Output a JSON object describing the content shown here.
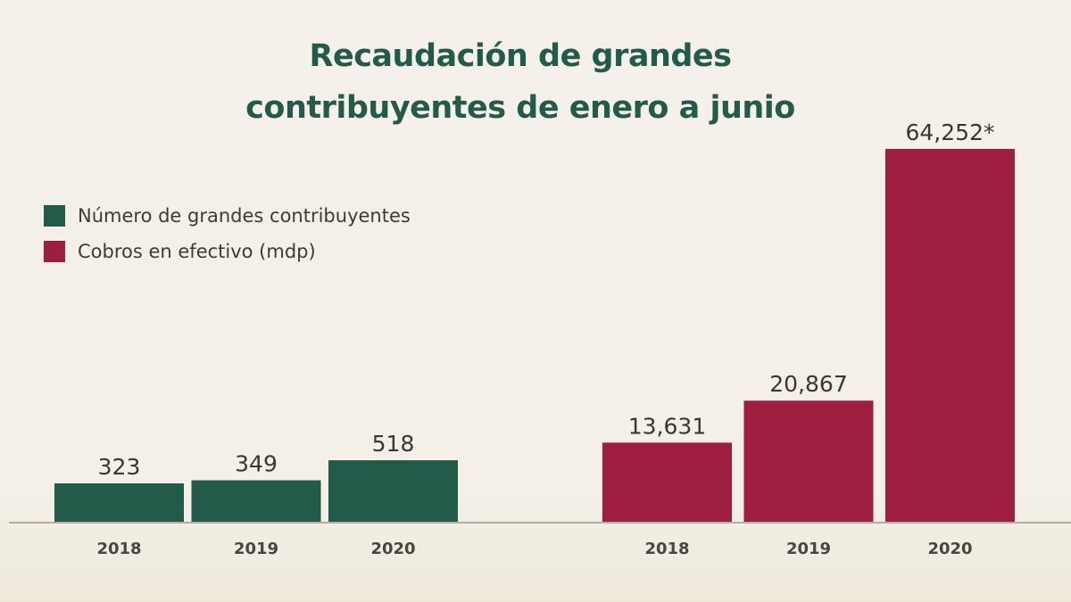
{
  "chart_data": {
    "type": "bar",
    "title": "Recaudación de grandes contribuyentes de enero a junio",
    "title_lines": [
      "Recaudación de grandes",
      "contribuyentes de enero a junio"
    ],
    "xlabel": "",
    "ylabel": "",
    "grid": false,
    "legend_position": "left",
    "legend": [
      {
        "label": "Número de grandes contribuyentes",
        "color": "#235b4a"
      },
      {
        "label": "Cobros en efectivo (mdp)",
        "color": "#9e1e40"
      }
    ],
    "groups": [
      {
        "name": "Número de grandes contribuyentes",
        "color": "#235b4a",
        "categories": [
          "2018",
          "2019",
          "2020"
        ],
        "values": [
          323,
          349,
          518
        ],
        "value_labels": [
          "323",
          "349",
          "518"
        ]
      },
      {
        "name": "Cobros en efectivo (mdp)",
        "color": "#9e1e40",
        "categories": [
          "2018",
          "2019",
          "2020"
        ],
        "values": [
          13631,
          20867,
          64252
        ],
        "value_labels": [
          "13,631",
          "20,867",
          "64,252*"
        ]
      }
    ]
  }
}
